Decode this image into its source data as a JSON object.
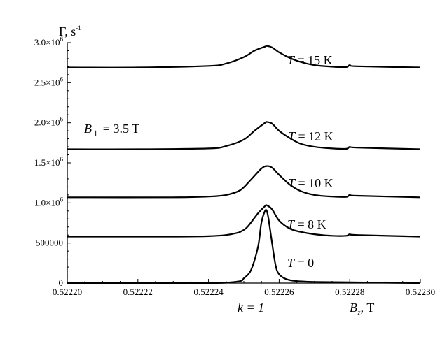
{
  "chart_data": {
    "type": "line",
    "ylabel": "Γ, s",
    "ylabel_exp": "-1",
    "xlabel_main": "B",
    "xlabel_sub": "z",
    "xlabel_unit": ", T",
    "annotation_k": "k = 1",
    "annotation_bperp": {
      "sym": "B",
      "sub": "⊥",
      "rest": " = 3.5 T"
    },
    "xlim": [
      0.5222,
      0.5223
    ],
    "ylim": [
      0,
      3000000
    ],
    "x_ticks": [
      {
        "value": 0.5222,
        "label": "0.52220"
      },
      {
        "value": 0.52222,
        "label": "0.52222"
      },
      {
        "value": 0.52224,
        "label": "0.52224"
      },
      {
        "value": 0.52226,
        "label": "0.52226"
      },
      {
        "value": 0.52228,
        "label": "0.52228"
      },
      {
        "value": 0.5223,
        "label": "0.52230"
      }
    ],
    "y_ticks": [
      {
        "value": 0,
        "mant": "0",
        "exp": ""
      },
      {
        "value": 500000,
        "mant": "500000",
        "exp": ""
      },
      {
        "value": 1000000,
        "mant": "1.0×10",
        "exp": "6"
      },
      {
        "value": 1500000,
        "mant": "1.5×10",
        "exp": "6"
      },
      {
        "value": 2000000,
        "mant": "2.0×10",
        "exp": "6"
      },
      {
        "value": 2500000,
        "mant": "2.5×10",
        "exp": "6"
      },
      {
        "value": 3000000,
        "mant": "3.0×10",
        "exp": "6"
      }
    ],
    "series": [
      {
        "name": "T = 0",
        "label_sym": "T",
        "label_rest": " = 0",
        "x": [
          0.5222,
          0.52223,
          0.52224,
          0.522245,
          0.522249,
          0.52225,
          0.522252,
          0.522254,
          0.522255,
          0.522256,
          0.5222565,
          0.522257,
          0.522258,
          0.522259,
          0.52226,
          0.522262,
          0.522265,
          0.52227,
          0.52228,
          0.5223
        ],
        "y": [
          0,
          0,
          0,
          5000,
          25000,
          60000,
          160000,
          450000,
          760000,
          900000,
          900000,
          800000,
          500000,
          220000,
          110000,
          50000,
          25000,
          15000,
          10000,
          0
        ]
      },
      {
        "name": "T = 8 K",
        "label_sym": "T",
        "label_rest": " = 8 K",
        "x": [
          0.5222,
          0.52223,
          0.52224,
          0.522245,
          0.522248,
          0.522249,
          0.522251,
          0.522254,
          0.522256,
          0.5222565,
          0.522258,
          0.52226,
          0.522263,
          0.522266,
          0.52227,
          0.522275,
          0.522279,
          0.52228,
          0.522282,
          0.5223
        ],
        "y": [
          580000,
          580000,
          585000,
          600000,
          625000,
          640000,
          700000,
          870000,
          960000,
          970000,
          920000,
          780000,
          680000,
          640000,
          610000,
          590000,
          590000,
          610000,
          600000,
          580000
        ]
      },
      {
        "name": "T = 10 K",
        "label_sym": "T",
        "label_rest": " = 10 K",
        "x": [
          0.5222,
          0.52223,
          0.52224,
          0.522245,
          0.522249,
          0.522252,
          0.522255,
          0.5222565,
          0.522258,
          0.52226,
          0.522263,
          0.522266,
          0.52227,
          0.522275,
          0.522279,
          0.52228,
          0.522282,
          0.5223
        ],
        "y": [
          1070000,
          1070000,
          1080000,
          1100000,
          1160000,
          1290000,
          1430000,
          1460000,
          1440000,
          1350000,
          1230000,
          1150000,
          1100000,
          1080000,
          1075000,
          1100000,
          1090000,
          1070000
        ]
      },
      {
        "name": "T = 12 K",
        "label_sym": "T",
        "label_rest": " = 12 K",
        "x": [
          0.5222,
          0.52222,
          0.52224,
          0.522245,
          0.52225,
          0.522253,
          0.522256,
          0.5222565,
          0.522258,
          0.52226,
          0.522263,
          0.522266,
          0.52227,
          0.522275,
          0.522279,
          0.52228,
          0.522282,
          0.5223
        ],
        "y": [
          1670000,
          1670000,
          1680000,
          1710000,
          1790000,
          1900000,
          2000000,
          2010000,
          1990000,
          1900000,
          1810000,
          1740000,
          1700000,
          1680000,
          1675000,
          1700000,
          1690000,
          1670000
        ]
      },
      {
        "name": "T = 15 K",
        "label_sym": "T",
        "label_rest": " = 15 K",
        "x": [
          0.5222,
          0.52222,
          0.52224,
          0.522245,
          0.52225,
          0.522253,
          0.522256,
          0.5222565,
          0.522258,
          0.52226,
          0.522263,
          0.522266,
          0.52227,
          0.522275,
          0.522279,
          0.52228,
          0.522282,
          0.5223
        ],
        "y": [
          2690000,
          2690000,
          2710000,
          2740000,
          2820000,
          2900000,
          2950000,
          2960000,
          2940000,
          2880000,
          2810000,
          2760000,
          2720000,
          2700000,
          2695000,
          2720000,
          2705000,
          2690000
        ]
      }
    ]
  }
}
